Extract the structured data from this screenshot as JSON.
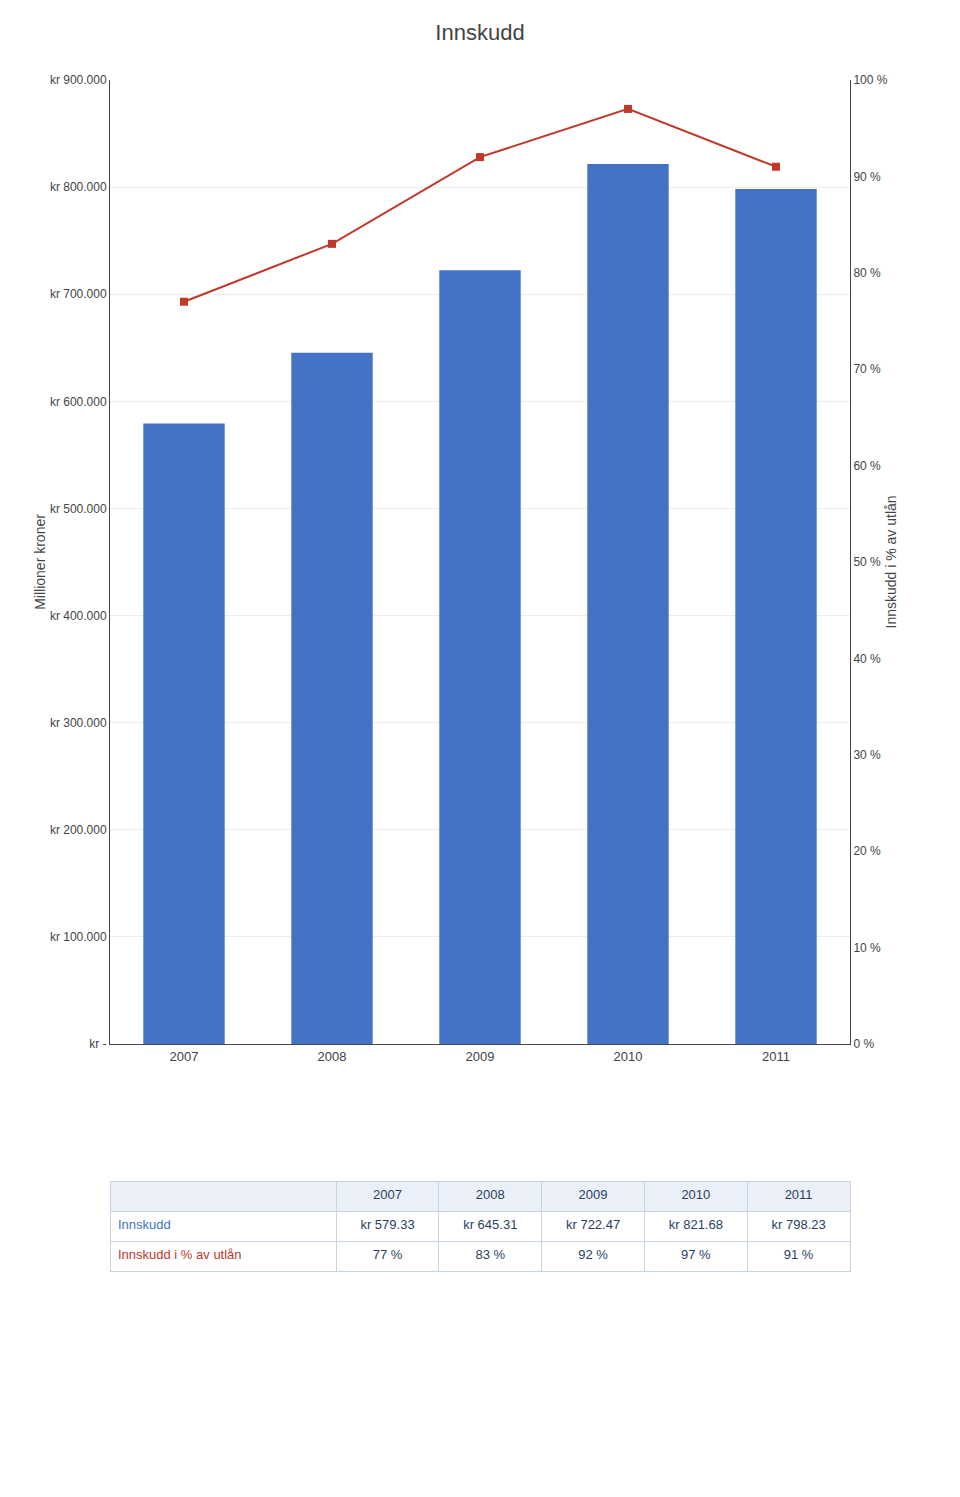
{
  "chart_data": {
    "type": "bar",
    "title": "Innskudd",
    "categories": [
      "2007",
      "2008",
      "2009",
      "2010",
      "2011"
    ],
    "series": [
      {
        "name": "Innskudd",
        "type": "bar",
        "color": "#4472C4",
        "values": [
          579330,
          645310,
          722470,
          821680,
          798230
        ],
        "value_labels": [
          "kr 579.33",
          "kr 645.31",
          "kr 722.47",
          "kr 821.68",
          "kr 798.23"
        ]
      },
      {
        "name": "Innskudd i % av utlån",
        "type": "line",
        "axis": "y2",
        "color": "#C0392B",
        "marker": "square",
        "values": [
          0.77,
          0.83,
          0.92,
          0.97,
          0.91
        ],
        "value_labels": [
          "77 %",
          "83 %",
          "92 %",
          "97 %",
          "91 %"
        ]
      }
    ],
    "ylabel": "Millioner kroner",
    "y2label": "Innskudd i % av utlån",
    "ylim": [
      0,
      900000
    ],
    "yticks": [
      {
        "value": 0,
        "label": "kr -"
      },
      {
        "value": 100000,
        "label": "kr 100.000"
      },
      {
        "value": 200000,
        "label": "kr 200.000"
      },
      {
        "value": 300000,
        "label": "kr 300.000"
      },
      {
        "value": 400000,
        "label": "kr 400.000"
      },
      {
        "value": 500000,
        "label": "kr 500.000"
      },
      {
        "value": 600000,
        "label": "kr 600.000"
      },
      {
        "value": 700000,
        "label": "kr 700.000"
      },
      {
        "value": 800000,
        "label": "kr 800.000"
      },
      {
        "value": 900000,
        "label": "kr 900.000"
      }
    ],
    "y2lim": [
      0,
      1.0
    ],
    "y2ticks": [
      {
        "value": 0.0,
        "label": "0 %"
      },
      {
        "value": 0.1,
        "label": "10 %"
      },
      {
        "value": 0.2,
        "label": "20 %"
      },
      {
        "value": 0.3,
        "label": "30 %"
      },
      {
        "value": 0.4,
        "label": "40 %"
      },
      {
        "value": 0.5,
        "label": "50 %"
      },
      {
        "value": 0.6,
        "label": "60 %"
      },
      {
        "value": 0.7,
        "label": "70 %"
      },
      {
        "value": 0.8,
        "label": "80 %"
      },
      {
        "value": 0.9,
        "label": "90 %"
      },
      {
        "value": 1.0,
        "label": "100 %"
      }
    ],
    "grid": true
  }
}
